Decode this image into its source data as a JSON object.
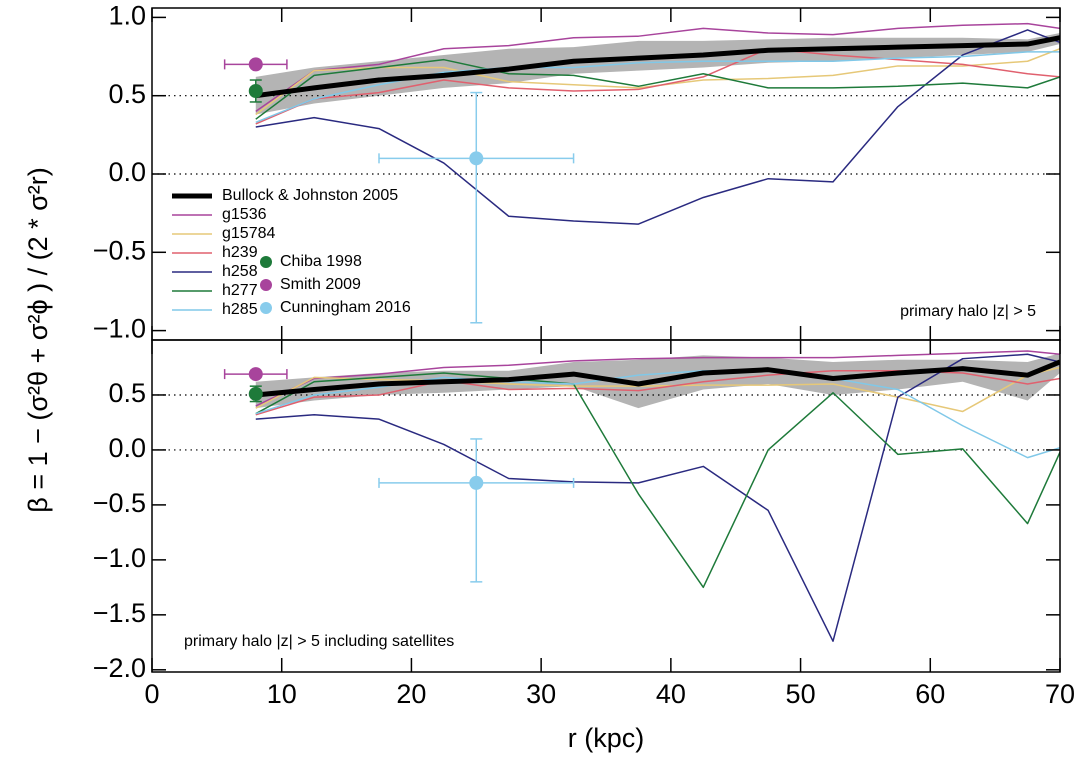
{
  "chart_data": [
    {
      "type": "line",
      "ylabel": "β = 1 − (σ²θ + σ²ϕ ) / (2 * σ²r)",
      "annotation": "primary halo |z| > 5",
      "legend": true,
      "xlim": [
        0,
        70
      ],
      "ylim": [
        -1.06,
        1.06
      ],
      "yticks": [
        {
          "value": 1.0,
          "label": "1.0"
        },
        {
          "value": 0.5,
          "label": "0.5"
        },
        {
          "value": 0,
          "label": "0.0"
        },
        {
          "value": -0.5,
          "label": "−0.5"
        },
        {
          "value": -1.0,
          "label": "−1.0"
        }
      ],
      "reference_lines": [
        0.5,
        0
      ],
      "x": [
        8,
        12.5,
        17.5,
        22.5,
        27.5,
        32.5,
        37.5,
        42.5,
        47.5,
        52.5,
        57.5,
        62.5,
        67.5,
        70
      ],
      "band": {
        "color": "#b4b4b4",
        "lower": [
          0.38,
          0.45,
          0.5,
          0.55,
          0.58,
          0.64,
          0.66,
          0.68,
          0.71,
          0.72,
          0.74,
          0.76,
          0.78,
          0.83
        ],
        "upper": [
          0.62,
          0.68,
          0.72,
          0.76,
          0.8,
          0.81,
          0.85,
          0.85,
          0.86,
          0.87,
          0.87,
          0.87,
          0.86,
          0.9
        ]
      },
      "series": [
        {
          "name": "Bullock & Johnston 2005",
          "color": "#000000",
          "line_width": 5,
          "values": [
            0.5,
            0.55,
            0.6,
            0.63,
            0.67,
            0.72,
            0.74,
            0.76,
            0.79,
            0.8,
            0.81,
            0.82,
            0.83,
            0.87
          ]
        },
        {
          "name": "g1536",
          "color": "#a8449c",
          "line_width": 1.5,
          "values": [
            0.4,
            0.66,
            0.7,
            0.8,
            0.82,
            0.87,
            0.88,
            0.93,
            0.9,
            0.89,
            0.93,
            0.95,
            0.96,
            0.93
          ]
        },
        {
          "name": "g15784",
          "color": "#e6c878",
          "line_width": 1.5,
          "values": [
            0.38,
            0.66,
            0.68,
            0.68,
            0.59,
            0.57,
            0.55,
            0.6,
            0.61,
            0.63,
            0.69,
            0.69,
            0.72,
            0.8
          ]
        },
        {
          "name": "h239",
          "color": "#e0606e",
          "line_width": 1.5,
          "values": [
            0.32,
            0.48,
            0.52,
            0.6,
            0.55,
            0.53,
            0.54,
            0.62,
            0.8,
            0.76,
            0.73,
            0.7,
            0.64,
            0.62
          ]
        },
        {
          "name": "h258",
          "color": "#2a2a80",
          "line_width": 1.5,
          "values": [
            0.3,
            0.36,
            0.29,
            0.07,
            -0.27,
            -0.3,
            -0.32,
            -0.15,
            -0.03,
            -0.05,
            0.43,
            0.76,
            0.92,
            0.84
          ]
        },
        {
          "name": "h277",
          "color": "#1e7a3a",
          "line_width": 1.5,
          "values": [
            0.35,
            0.63,
            0.68,
            0.73,
            0.64,
            0.63,
            0.56,
            0.64,
            0.55,
            0.55,
            0.56,
            0.58,
            0.55,
            0.62
          ]
        },
        {
          "name": "h285",
          "color": "#80c8e8",
          "line_width": 1.5,
          "values": [
            0.33,
            0.48,
            0.57,
            0.65,
            0.68,
            0.68,
            0.71,
            0.72,
            0.72,
            0.72,
            0.74,
            0.75,
            0.78,
            0.78
          ]
        }
      ],
      "points": [
        {
          "name": "Chiba 1998",
          "color": "#1e7a3a",
          "x": 8,
          "y": 0.53,
          "yerr": 0.07
        },
        {
          "name": "Smith 2009",
          "color": "#a8449c",
          "x": 8,
          "y": 0.7,
          "xerr": 2.4
        },
        {
          "name": "Cunningham 2016",
          "color": "#88ccec",
          "x": 25,
          "y": 0.1,
          "xerr": 7.5,
          "yerr": [
            1.05,
            0.42
          ]
        }
      ]
    },
    {
      "type": "line",
      "xlabel": "r (kpc)",
      "annotation": "primary halo |z| > 5 including satellites",
      "xlim": [
        0,
        70
      ],
      "xticks": [
        0,
        10,
        20,
        30,
        40,
        50,
        60,
        70
      ],
      "ylim": [
        -2.02,
        1.0
      ],
      "yticks": [
        {
          "value": 0.5,
          "label": "0.5"
        },
        {
          "value": 0,
          "label": "0.0"
        },
        {
          "value": -0.5,
          "label": "−0.5"
        },
        {
          "value": -1.0,
          "label": "−1.0"
        },
        {
          "value": -1.5,
          "label": "−1.5"
        },
        {
          "value": -2.0,
          "label": "−2.0"
        }
      ],
      "reference_lines": [
        0.5,
        0
      ],
      "x": [
        8,
        12.5,
        17.5,
        22.5,
        27.5,
        32.5,
        37.5,
        42.5,
        47.5,
        52.5,
        57.5,
        62.5,
        67.5,
        70
      ],
      "band": {
        "color": "#b4b4b4",
        "lower": [
          0.38,
          0.45,
          0.5,
          0.52,
          0.55,
          0.58,
          0.38,
          0.55,
          0.6,
          0.5,
          0.55,
          0.62,
          0.45,
          0.7
        ],
        "upper": [
          0.62,
          0.66,
          0.7,
          0.72,
          0.72,
          0.8,
          0.82,
          0.86,
          0.84,
          0.8,
          0.82,
          0.82,
          0.8,
          0.88
        ]
      },
      "series": [
        {
          "color": "#000000",
          "line_width": 5,
          "values": [
            0.5,
            0.55,
            0.6,
            0.62,
            0.64,
            0.69,
            0.6,
            0.7,
            0.73,
            0.65,
            0.7,
            0.74,
            0.68,
            0.8
          ]
        },
        {
          "color": "#a8449c",
          "line_width": 1.5,
          "values": [
            0.4,
            0.65,
            0.69,
            0.75,
            0.77,
            0.81,
            0.83,
            0.84,
            0.84,
            0.84,
            0.86,
            0.88,
            0.9,
            0.87
          ]
        },
        {
          "color": "#e6c878",
          "line_width": 1.5,
          "values": [
            0.38,
            0.66,
            0.64,
            0.63,
            0.6,
            0.58,
            0.58,
            0.59,
            0.59,
            0.6,
            0.48,
            0.35,
            0.68,
            0.75
          ]
        },
        {
          "color": "#e0606e",
          "line_width": 1.5,
          "values": [
            0.32,
            0.48,
            0.5,
            0.63,
            0.55,
            0.56,
            0.54,
            0.62,
            0.68,
            0.72,
            0.72,
            0.7,
            0.6,
            0.65
          ]
        },
        {
          "color": "#2a2a80",
          "line_width": 1.5,
          "values": [
            0.28,
            0.32,
            0.28,
            0.05,
            -0.26,
            -0.29,
            -0.3,
            -0.15,
            -0.55,
            -1.74,
            0.48,
            0.83,
            0.87,
            0.8
          ]
        },
        {
          "color": "#1e7a3a",
          "line_width": 1.5,
          "values": [
            0.33,
            0.62,
            0.66,
            0.7,
            0.65,
            0.6,
            -0.4,
            -1.25,
            0.0,
            0.52,
            -0.04,
            0.01,
            -0.67,
            -0.02
          ]
        },
        {
          "color": "#80c8e8",
          "line_width": 1.5,
          "values": [
            0.33,
            0.5,
            0.57,
            0.66,
            0.62,
            0.6,
            0.68,
            0.72,
            0.72,
            0.65,
            0.55,
            0.22,
            -0.07,
            0.02
          ]
        }
      ],
      "points": [
        {
          "color": "#1e7a3a",
          "x": 8,
          "y": 0.51,
          "yerr": 0.07
        },
        {
          "color": "#a8449c",
          "x": 8,
          "y": 0.69,
          "xerr": 2.4
        },
        {
          "color": "#88ccec",
          "x": 25,
          "y": -0.3,
          "xerr": 7.5,
          "yerr": [
            0.9,
            0.4
          ]
        }
      ]
    }
  ]
}
